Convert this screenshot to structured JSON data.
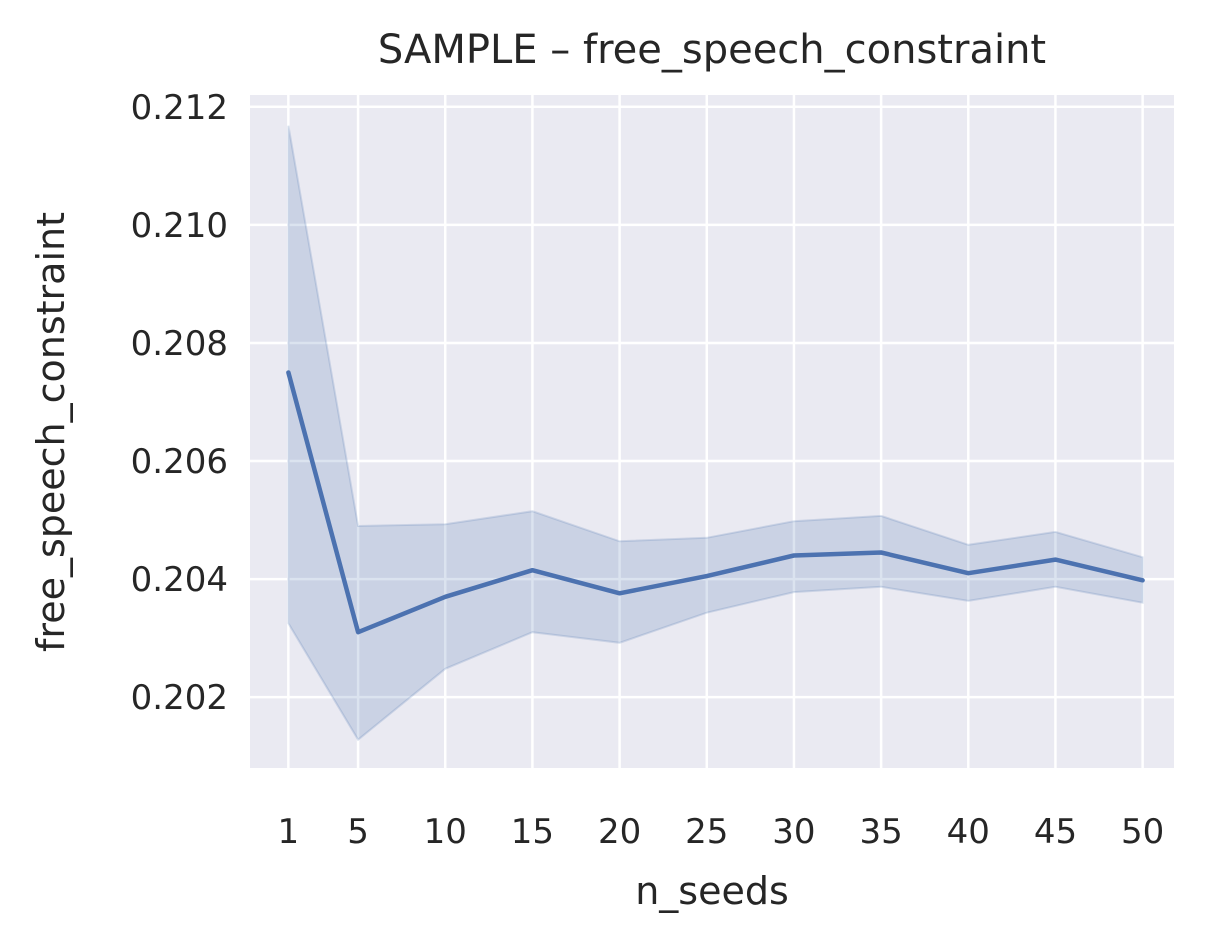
{
  "chart_data": {
    "type": "line",
    "title": "SAMPLE – free_speech_constraint",
    "xlabel": "n_seeds",
    "ylabel": "free_speech_constraint",
    "x": [
      1,
      5,
      10,
      15,
      20,
      25,
      30,
      35,
      40,
      45,
      50
    ],
    "x_tick_labels": [
      "1",
      "5",
      "10",
      "15",
      "20",
      "25",
      "30",
      "35",
      "40",
      "45",
      "50"
    ],
    "y_ticks": [
      0.202,
      0.204,
      0.206,
      0.208,
      0.21,
      0.212
    ],
    "y_tick_labels": [
      "0.202",
      "0.204",
      "0.206",
      "0.208",
      "0.210",
      "0.212"
    ],
    "ylim": [
      0.2008,
      0.2122
    ],
    "xlim": [
      -1.2,
      51.8
    ],
    "grid": true,
    "series": [
      {
        "values": [
          0.2075,
          0.2031,
          0.2037,
          0.20415,
          0.20376,
          0.20405,
          0.2044,
          0.20445,
          0.2041,
          0.20433,
          0.20398
        ],
        "ci_lower": [
          0.20325,
          0.20128,
          0.20248,
          0.2031,
          0.20292,
          0.20343,
          0.20378,
          0.20387,
          0.20363,
          0.20387,
          0.2036
        ],
        "ci_upper": [
          0.21168,
          0.2049,
          0.20493,
          0.20515,
          0.20464,
          0.2047,
          0.20498,
          0.20507,
          0.20458,
          0.2048,
          0.20437
        ]
      }
    ],
    "colors": {
      "line": "#4c72b0",
      "band": "#4c72b0",
      "plot_background": "#eaeaf2",
      "grid": "#ffffff",
      "text": "#262626"
    }
  }
}
